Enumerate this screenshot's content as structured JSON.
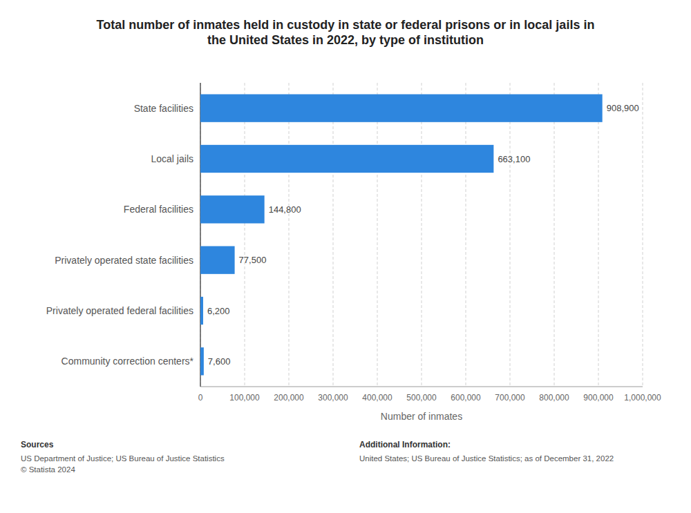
{
  "chart_data": {
    "type": "bar",
    "orientation": "horizontal",
    "title": "Total number of inmates held in custody in state or federal prisons or in local jails in\nthe United States in 2022, by type of institution",
    "categories": [
      "State facilities",
      "Local jails",
      "Federal facilities",
      "Privately operated state facilities",
      "Privately operated federal facilities",
      "Community correction centers*"
    ],
    "values": [
      908900,
      663100,
      144800,
      77500,
      6200,
      7600
    ],
    "value_labels": [
      "908,900",
      "663,100",
      "144,800",
      "77,500",
      "6,200",
      "7,600"
    ],
    "data_labels": true,
    "color": "#2e86de",
    "x_label": "Number of inmates",
    "xlim": [
      0,
      1000000
    ],
    "xticks": [
      0,
      {
        "value": 100000,
        "label": "100,000"
      },
      {
        "value": 200000,
        "label": "200,000"
      },
      {
        "value": 300000,
        "label": "300,000"
      },
      {
        "value": 400000,
        "label": "400,000"
      },
      {
        "value": 500000,
        "label": "500,000"
      },
      {
        "value": 600000,
        "label": "600,000"
      },
      {
        "value": 700000,
        "label": "700,000"
      },
      {
        "value": 800000,
        "label": "800,000"
      },
      {
        "value": 900000,
        "label": "900,000"
      },
      {
        "value": 1000000,
        "label": "1,000,000"
      }
    ],
    "grid": true,
    "annotations": [
      "Sources",
      "US Department of Justice; US Bureau of Justice Statistics\n© Statista 2024",
      "Additional Information:",
      "United States; US Bureau of Justice Statistics; as of December 31, 2022"
    ]
  }
}
